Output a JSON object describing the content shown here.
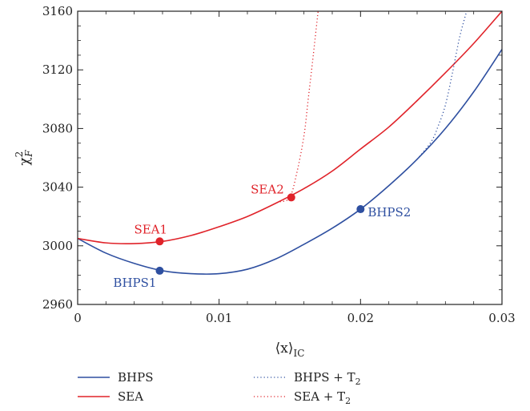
{
  "chart_data": {
    "type": "line",
    "xlabel": "⟨x⟩",
    "xlabel_sub": "IC",
    "ylabel": "χ",
    "ylabel_sup": "2",
    "ylabel_sub": "F",
    "xlim": [
      0,
      0.03
    ],
    "ylim": [
      2960,
      3160
    ],
    "xticks": [
      0,
      0.01,
      0.02,
      0.03
    ],
    "xtick_labels": [
      "0",
      "0.01",
      "0.02",
      "0.03"
    ],
    "yticks": [
      2960,
      3000,
      3040,
      3080,
      3120,
      3160
    ],
    "ytick_labels": [
      "2960",
      "3000",
      "3040",
      "3080",
      "3120",
      "3160"
    ],
    "grid": false,
    "legend_position": "bottom",
    "colors": {
      "bhps": "#2e4fa0",
      "sea": "#e0232a"
    },
    "series": [
      {
        "name": "BHPS",
        "style": "solid",
        "color": "#2e4fa0",
        "x": [
          0,
          0.002,
          0.004,
          0.006,
          0.008,
          0.01,
          0.012,
          0.014,
          0.016,
          0.018,
          0.02,
          0.022,
          0.024,
          0.026,
          0.028,
          0.03
        ],
        "y": [
          3005,
          2995,
          2988,
          2983,
          2981,
          2981,
          2984,
          2991,
          3001,
          3012,
          3025,
          3041,
          3059,
          3080,
          3105,
          3134
        ]
      },
      {
        "name": "SEA",
        "style": "solid",
        "color": "#e0232a",
        "x": [
          0,
          0.002,
          0.004,
          0.006,
          0.008,
          0.01,
          0.012,
          0.014,
          0.016,
          0.018,
          0.02,
          0.022,
          0.024,
          0.026,
          0.028,
          0.03
        ],
        "y": [
          3005,
          3002,
          3001.5,
          3003,
          3007,
          3013,
          3020,
          3029,
          3039,
          3051,
          3066,
          3081,
          3099,
          3118,
          3138,
          3160
        ]
      },
      {
        "name": "BHPS + T",
        "name_sub": "2",
        "style": "dotted",
        "color": "#2e4fa0",
        "x": [
          0.024,
          0.025,
          0.0255,
          0.026,
          0.0265,
          0.027,
          0.0275
        ],
        "y": [
          3059,
          3071,
          3082,
          3096,
          3118,
          3142,
          3160
        ]
      },
      {
        "name": "SEA + T",
        "name_sub": "2",
        "style": "dotted",
        "color": "#e0232a",
        "x": [
          0.0143,
          0.015,
          0.0155,
          0.016,
          0.0163,
          0.0166,
          0.017
        ],
        "y": [
          3030,
          3033,
          3050,
          3075,
          3100,
          3125,
          3160
        ]
      }
    ],
    "points": [
      {
        "label": "SEA1",
        "x": 0.0058,
        "y": 3003,
        "color": "#e0232a",
        "label_pos": "above"
      },
      {
        "label": "SEA2",
        "x": 0.0151,
        "y": 3033,
        "color": "#e0232a",
        "label_pos": "left"
      },
      {
        "label": "BHPS1",
        "x": 0.0058,
        "y": 2983,
        "color": "#2e4fa0",
        "label_pos": "below-left"
      },
      {
        "label": "BHPS2",
        "x": 0.02,
        "y": 3025,
        "color": "#2e4fa0",
        "label_pos": "right"
      }
    ]
  }
}
